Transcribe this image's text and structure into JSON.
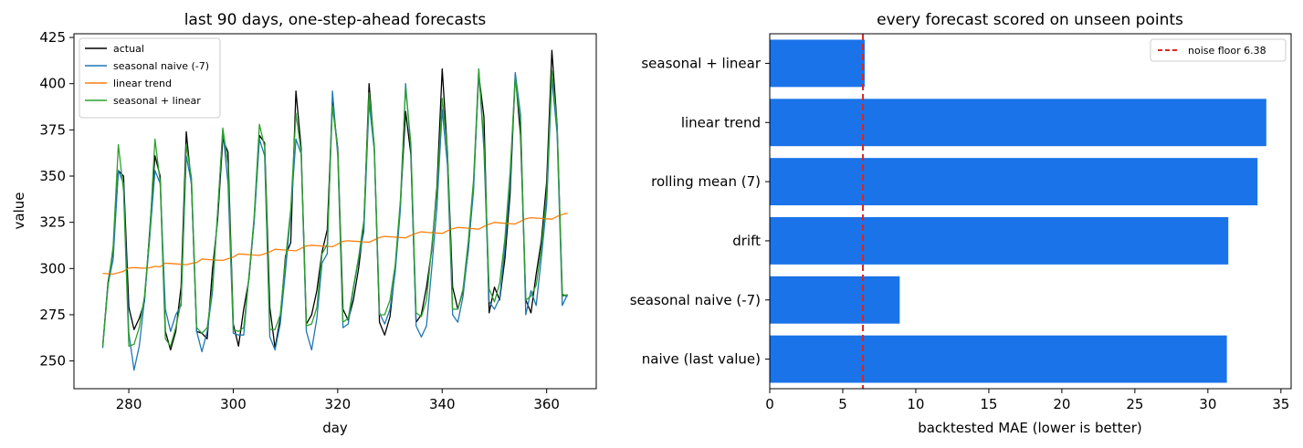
{
  "chart_data": [
    {
      "type": "line",
      "title": "last 90 days, one-step-ahead forecasts",
      "xlabel": "day",
      "ylabel": "value",
      "xlim": [
        269.5,
        369.5
      ],
      "ylim": [
        235,
        427
      ],
      "xticks": [
        280,
        300,
        320,
        340,
        360
      ],
      "yticks": [
        250,
        275,
        300,
        325,
        350,
        375,
        400,
        425
      ],
      "grid": false,
      "legend_position": "top-left",
      "x_start": 275,
      "series": [
        {
          "name": "actual",
          "color": "#000000",
          "values": [
            258,
            292,
            310,
            353,
            350,
            279,
            267,
            273,
            282,
            320,
            361,
            350,
            266,
            256,
            266,
            290,
            374,
            345,
            266,
            265,
            262,
            299,
            326,
            370,
            363,
            270,
            258,
            278,
            294,
            326,
            372,
            368,
            279,
            257,
            273,
            307,
            314,
            396,
            365,
            270,
            275,
            288,
            309,
            321,
            390,
            365,
            278,
            272,
            283,
            300,
            324,
            400,
            365,
            271,
            264,
            274,
            300,
            335,
            385,
            362,
            271,
            275,
            290,
            310,
            344,
            408,
            363,
            290,
            278,
            288,
            310,
            345,
            405,
            382,
            276,
            290,
            283,
            305,
            340,
            405,
            372,
            283,
            276,
            297,
            315,
            347,
            418,
            378,
            286,
            285
          ]
        },
        {
          "name": "seasonal naive (-7)",
          "color": "#1f77b4",
          "values": [
            257,
            291,
            305,
            353,
            346,
            265,
            245,
            258,
            283,
            316,
            353,
            346,
            278,
            266,
            275,
            280,
            361,
            346,
            266,
            255,
            266,
            287,
            330,
            375,
            346,
            265,
            264,
            264,
            296,
            325,
            370,
            361,
            263,
            256,
            270,
            299,
            330,
            370,
            362,
            266,
            256,
            273,
            303,
            308,
            396,
            361,
            268,
            270,
            289,
            305,
            320,
            390,
            364,
            276,
            270,
            278,
            298,
            332,
            400,
            365,
            269,
            263,
            269,
            300,
            333,
            386,
            356,
            275,
            271,
            285,
            311,
            342,
            408,
            364,
            282,
            278,
            284,
            311,
            346,
            406,
            383,
            275,
            288,
            280,
            306,
            335,
            403,
            373,
            280,
            286
          ]
        },
        {
          "name": "linear trend",
          "color": "#ff7f0e",
          "values": [
            297.4,
            297.2,
            297.0,
            297.7,
            298.5,
            300.3,
            300.5,
            300.3,
            300.2,
            300.4,
            301.2,
            300.9,
            302.9,
            302.7,
            302.5,
            302.3,
            302.1,
            302.8,
            303.2,
            305.2,
            304.9,
            304.7,
            304.5,
            304.4,
            305.3,
            306.2,
            307.9,
            307.7,
            307.5,
            307.3,
            307.1,
            308.0,
            309.0,
            310.4,
            310.2,
            310.0,
            309.8,
            309.6,
            310.9,
            312.2,
            312.6,
            312.4,
            312.2,
            312.0,
            311.8,
            313.3,
            314.7,
            315.0,
            314.8,
            314.6,
            314.4,
            314.2,
            315.5,
            316.8,
            317.4,
            317.2,
            317.0,
            316.8,
            316.6,
            317.9,
            319.0,
            319.9,
            319.6,
            319.4,
            319.2,
            319.0,
            320.4,
            321.5,
            322.2,
            322.0,
            321.8,
            321.5,
            321.3,
            322.8,
            324.0,
            325.0,
            324.7,
            324.5,
            324.3,
            324.1,
            325.5,
            326.9,
            327.5,
            327.3,
            327.1,
            326.9,
            326.7,
            328.2,
            329.2,
            330.0
          ]
        },
        {
          "name": "seasonal + linear",
          "color": "#2ca02c",
          "values": [
            258,
            290,
            312,
            367,
            342,
            258,
            259,
            268,
            285,
            318,
            370,
            347,
            262,
            258,
            268,
            282,
            367,
            349,
            268,
            265,
            268,
            290,
            330,
            376,
            356,
            267,
            266,
            268,
            295,
            328,
            378,
            366,
            267,
            267,
            275,
            305,
            332,
            384,
            363,
            269,
            270,
            279,
            308,
            313,
            388,
            364,
            271,
            273,
            290,
            306,
            326,
            395,
            367,
            275,
            275,
            283,
            302,
            337,
            398,
            368,
            276,
            274,
            283,
            312,
            341,
            392,
            364,
            278,
            278,
            289,
            315,
            348,
            408,
            368,
            289,
            282,
            292,
            316,
            352,
            403,
            379,
            283,
            285,
            291,
            311,
            341,
            407,
            378,
            285,
            286
          ]
        }
      ]
    },
    {
      "type": "bar",
      "orientation": "horizontal",
      "title": "every forecast scored on unseen points",
      "xlabel": "backtested MAE (lower is better)",
      "ylabel": "",
      "xlim": [
        0,
        35.7
      ],
      "xticks": [
        0,
        5,
        10,
        15,
        20,
        25,
        30,
        35
      ],
      "grid": false,
      "bar_color": "#1a73e8",
      "categories": [
        "seasonal + linear",
        "linear trend",
        "rolling mean (7)",
        "drift",
        "seasonal naive (-7)",
        "naive (last value)"
      ],
      "values": [
        6.5,
        34.0,
        33.4,
        31.4,
        8.9,
        31.3
      ],
      "reference_line": {
        "value": 6.38,
        "label": "noise floor 6.38",
        "color": "#d62728",
        "style": "dashed"
      },
      "legend_position": "top-right"
    }
  ]
}
